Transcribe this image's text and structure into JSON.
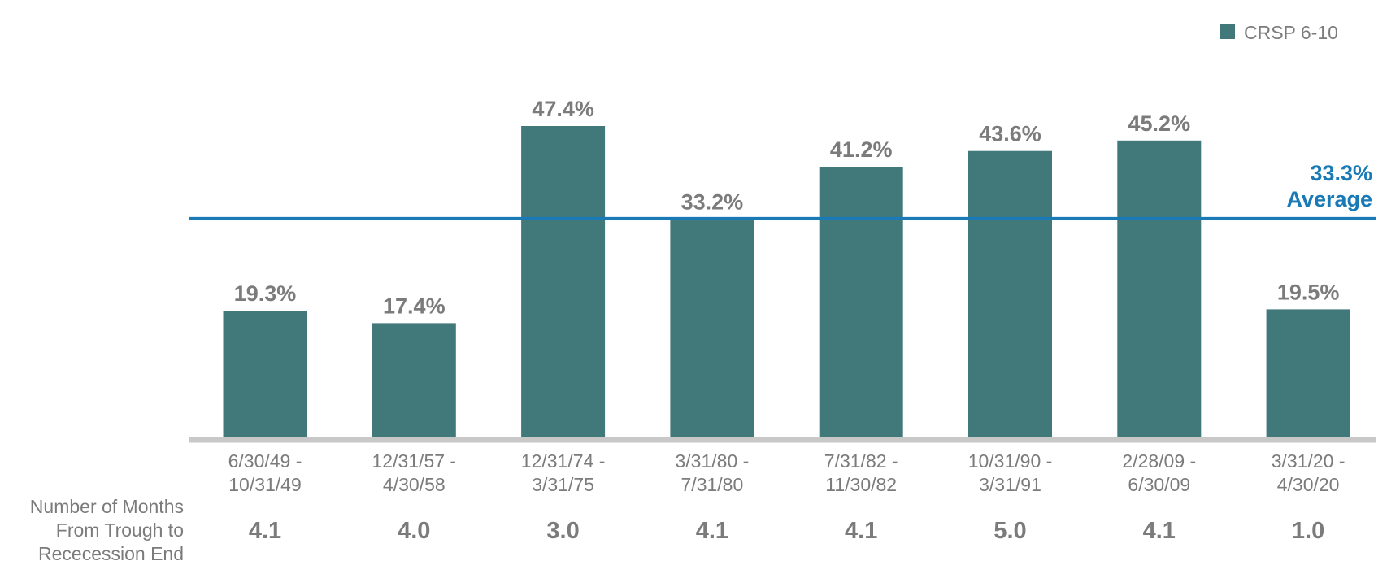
{
  "chart_data": {
    "type": "bar",
    "categories": [
      [
        "6/30/49 -",
        "10/31/49"
      ],
      [
        "12/31/57 -",
        "4/30/58"
      ],
      [
        "12/31/74 -",
        "3/31/75"
      ],
      [
        "3/31/80 -",
        "7/31/80"
      ],
      [
        "7/31/82 -",
        "11/30/82"
      ],
      [
        "10/31/90 -",
        "3/31/91"
      ],
      [
        "2/28/09 -",
        "6/30/09"
      ],
      [
        "3/31/20 -",
        "4/30/20"
      ]
    ],
    "series": [
      {
        "name": "CRSP 6-10",
        "values": [
          19.3,
          17.4,
          47.4,
          33.2,
          41.2,
          43.6,
          45.2,
          19.5
        ],
        "labels": [
          "19.3%",
          "17.4%",
          "47.4%",
          "33.2%",
          "41.2%",
          "43.6%",
          "45.2%",
          "19.5%"
        ],
        "color": "#41787a"
      }
    ],
    "average": {
      "value": 33.3,
      "value_label": "33.3%",
      "label": "Average",
      "color": "#1a7ab5"
    },
    "months_row": {
      "label_lines": [
        "Number of Months",
        "From Trough to",
        "Rececession End"
      ],
      "values": [
        "4.1",
        "4.0",
        "3.0",
        "4.1",
        "4.1",
        "5.0",
        "4.1",
        "1.0"
      ]
    },
    "ylim": [
      0,
      47.4
    ],
    "grid": false,
    "legend_position": "top-right",
    "axis_color": "#c8c8c8"
  }
}
